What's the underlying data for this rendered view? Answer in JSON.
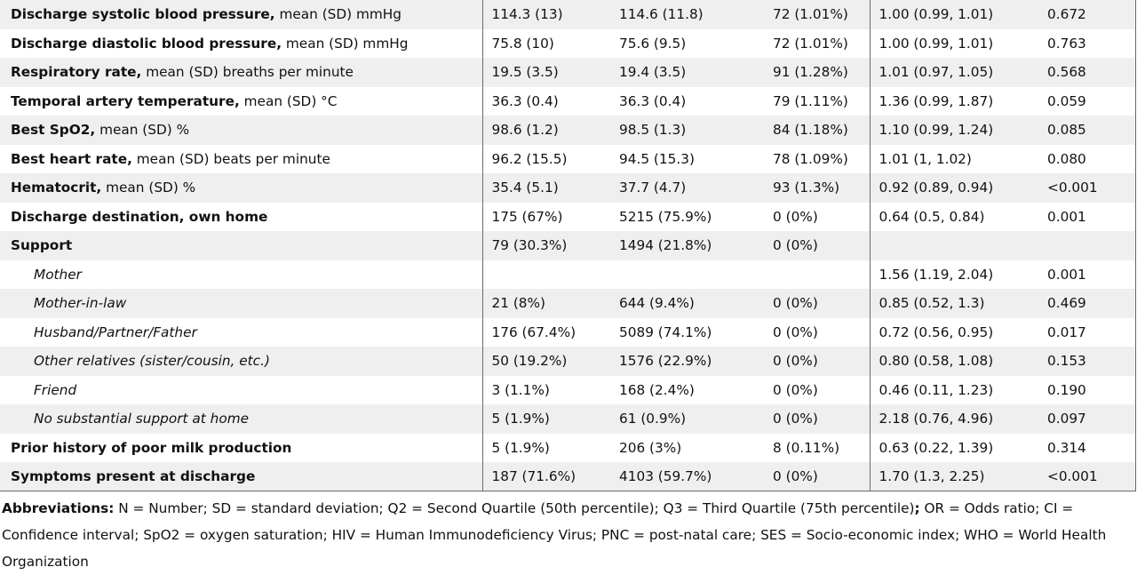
{
  "rows": [
    {
      "label_bold": "Discharge systolic blood pressure,",
      "label_rest": " mean (SD) mmHg",
      "c1": "114.3 (13)",
      "c2": "114.6 (11.8)",
      "c3": "72 (1.01%)",
      "c4": "1.00 (0.99, 1.01)",
      "c5": "0.672",
      "indent": false
    },
    {
      "label_bold": "Discharge diastolic blood pressure,",
      "label_rest": " mean (SD) mmHg",
      "c1": "75.8 (10)",
      "c2": "75.6 (9.5)",
      "c3": "72 (1.01%)",
      "c4": "1.00 (0.99, 1.01)",
      "c5": "0.763",
      "indent": false
    },
    {
      "label_bold": "Respiratory rate,",
      "label_rest": " mean (SD) breaths per minute",
      "c1": "19.5 (3.5)",
      "c2": "19.4 (3.5)",
      "c3": "91 (1.28%)",
      "c4": "1.01 (0.97, 1.05)",
      "c5": "0.568",
      "indent": false
    },
    {
      "label_bold": "Temporal artery temperature,",
      "label_rest": " mean (SD) °C",
      "c1": "36.3 (0.4)",
      "c2": "36.3 (0.4)",
      "c3": "79 (1.11%)",
      "c4": "1.36 (0.99, 1.87)",
      "c5": "0.059",
      "indent": false
    },
    {
      "label_bold": "Best SpO2,",
      "label_rest": " mean (SD) %",
      "c1": "98.6 (1.2)",
      "c2": "98.5 (1.3)",
      "c3": "84 (1.18%)",
      "c4": "1.10 (0.99, 1.24)",
      "c5": "0.085",
      "indent": false
    },
    {
      "label_bold": "Best heart rate,",
      "label_rest": " mean (SD) beats per minute",
      "c1": "96.2 (15.5)",
      "c2": "94.5 (15.3)",
      "c3": "78 (1.09%)",
      "c4": "1.01 (1, 1.02)",
      "c5": "0.080",
      "indent": false
    },
    {
      "label_bold": "Hematocrit,",
      "label_rest": " mean (SD) %",
      "c1": "35.4 (5.1)",
      "c2": "37.7 (4.7)",
      "c3": "93 (1.3%)",
      "c4": "0.92 (0.89, 0.94)",
      "c5": "<0.001",
      "indent": false
    },
    {
      "label_bold": "Discharge destination, own home",
      "label_rest": "",
      "c1": "175 (67%)",
      "c2": "5215 (75.9%)",
      "c3": "0 (0%)",
      "c4": "0.64 (0.5, 0.84)",
      "c5": "0.001",
      "indent": false
    },
    {
      "label_bold": "Support",
      "label_rest": "",
      "c1": "79 (30.3%)",
      "c2": "1494 (21.8%)",
      "c3": "0 (0%)",
      "c4": "",
      "c5": "",
      "indent": false
    },
    {
      "label_bold": "",
      "label_rest": "Mother",
      "c1": "",
      "c2": "",
      "c3": "",
      "c4": "1.56 (1.19, 2.04)",
      "c5": "0.001",
      "indent": true
    },
    {
      "label_bold": "",
      "label_rest": "Mother-in-law",
      "c1": "21 (8%)",
      "c2": "644 (9.4%)",
      "c3": "0 (0%)",
      "c4": "0.85 (0.52, 1.3)",
      "c5": "0.469",
      "indent": true
    },
    {
      "label_bold": "",
      "label_rest": "Husband/Partner/Father",
      "c1": "176 (67.4%)",
      "c2": "5089 (74.1%)",
      "c3": "0 (0%)",
      "c4": "0.72 (0.56, 0.95)",
      "c5": "0.017",
      "indent": true
    },
    {
      "label_bold": "",
      "label_rest": "Other relatives (sister/cousin, etc.)",
      "c1": "50 (19.2%)",
      "c2": "1576 (22.9%)",
      "c3": "0 (0%)",
      "c4": "0.80 (0.58, 1.08)",
      "c5": "0.153",
      "indent": true
    },
    {
      "label_bold": "",
      "label_rest": "Friend",
      "c1": "3 (1.1%)",
      "c2": "168 (2.4%)",
      "c3": "0 (0%)",
      "c4": "0.46 (0.11, 1.23)",
      "c5": "0.190",
      "indent": true
    },
    {
      "label_bold": "",
      "label_rest": "No substantial support at home",
      "c1": "5 (1.9%)",
      "c2": "61 (0.9%)",
      "c3": "0 (0%)",
      "c4": "2.18 (0.76, 4.96)",
      "c5": "0.097",
      "indent": true
    },
    {
      "label_bold": "Prior history of poor milk production",
      "label_rest": "",
      "c1": "5 (1.9%)",
      "c2": "206 (3%)",
      "c3": "8 (0.11%)",
      "c4": "0.63 (0.22, 1.39)",
      "c5": "0.314",
      "indent": false
    },
    {
      "label_bold": "Symptoms present at discharge",
      "label_rest": "",
      "c1": "187 (71.6%)",
      "c2": "4103 (59.7%)",
      "c3": "0 (0%)",
      "c4": "1.70 (1.3, 2.25)",
      "c5": "<0.001",
      "indent": false
    }
  ],
  "footnote": {
    "label": "Abbreviations:",
    "text_a": " N = Number; SD = standard deviation; Q2 = Second Quartile (50th percentile); Q3 = Third Quartile (75th percentile)",
    "semicolon": ";",
    "text_b": " OR = Odds ratio; CI = Confidence interval; SpO2 = oxygen saturation; HIV = Human Immunodeficiency Virus; PNC = post-natal care; SES = Socio-economic index; WHO = World Health Organization"
  }
}
